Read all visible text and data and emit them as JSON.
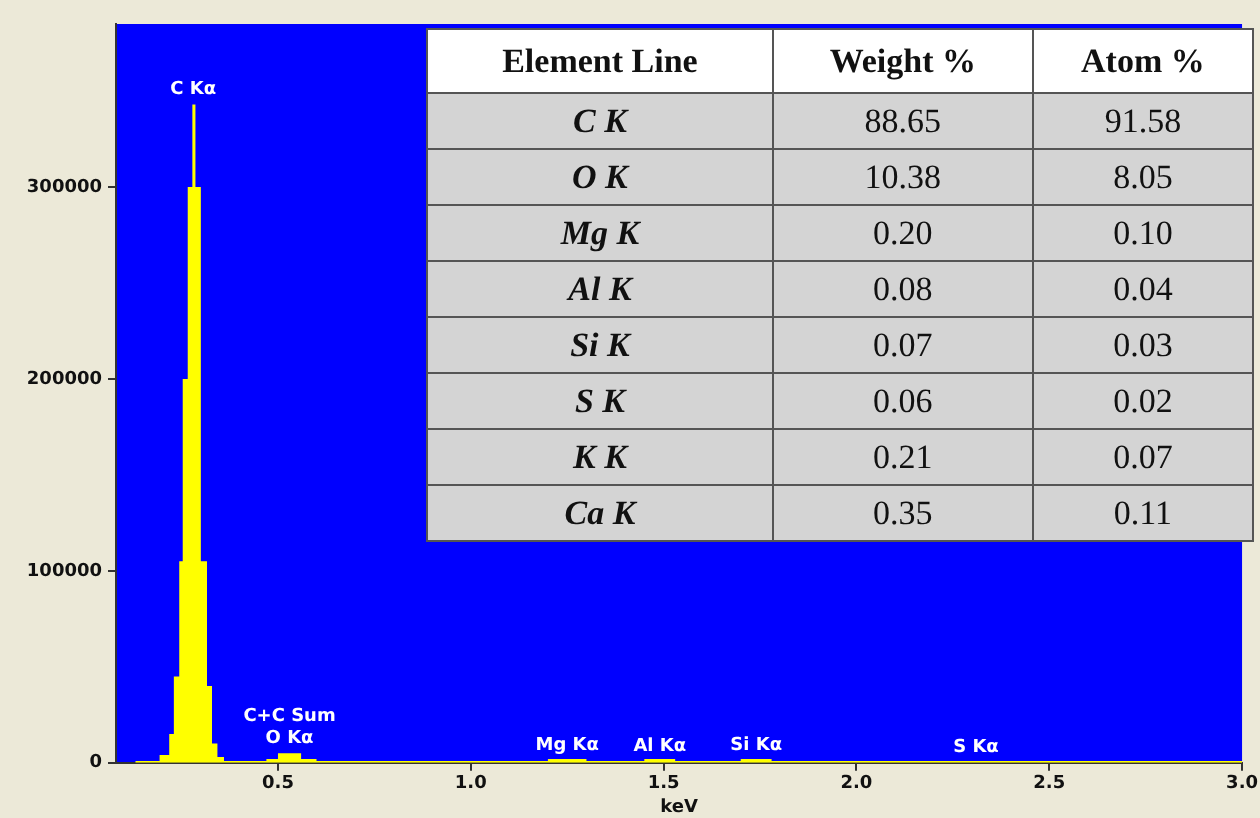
{
  "chart_data": [
    {
      "type": "histogram",
      "xlabel": "keV",
      "bins": [
        0.13,
        0.193,
        0.218,
        0.23,
        0.244,
        0.253,
        0.266,
        0.278,
        0.286,
        0.3,
        0.316,
        0.329,
        0.343,
        0.36,
        0.47,
        0.5,
        0.56,
        0.6,
        1.2,
        1.3,
        1.45,
        1.53,
        1.7,
        1.78,
        3.0
      ],
      "series": [
        {
          "color": "#ffff00",
          "values": [
            1000,
            4000,
            15000,
            45000,
            105000,
            200000,
            300000,
            343000,
            300000,
            105000,
            40000,
            10000,
            3000,
            1000,
            2000,
            5000,
            2000,
            1000,
            2000,
            1000,
            2000,
            1000,
            2000,
            1000
          ]
        }
      ],
      "xlim": [
        0.08,
        3.0
      ],
      "ylim": [
        0,
        385000
      ],
      "xticks": [
        0.5,
        {
          "value": 1,
          "label": "1.0"
        },
        1.5,
        {
          "value": 2,
          "label": "2.0"
        },
        2.5,
        {
          "value": 3,
          "label": "3.0"
        }
      ],
      "yticks": [
        0,
        100000,
        200000,
        300000
      ],
      "grid": false,
      "legend": false,
      "annotations": [
        {
          "text": "C Kα",
          "x": 0.28,
          "y": 343000
        },
        {
          "text": "C+C Sum\nO Kα",
          "x": 0.53,
          "y": 5000
        },
        {
          "text": "Mg Kα",
          "x": 1.25,
          "y": 1500
        },
        {
          "text": "Al Kα",
          "x": 1.49,
          "y": 1000
        },
        {
          "text": "Si Kα",
          "x": 1.74,
          "y": 1500
        },
        {
          "text": "S Kα",
          "x": 2.31,
          "y": 500
        }
      ]
    },
    {
      "type": "other",
      "legend_title": "Element Line",
      "categories": [
        "C K",
        "O K",
        "Mg K",
        "Al K",
        "Si K",
        "S K",
        "K K",
        "Ca K"
      ],
      "data_labels": true,
      "series": [
        {
          "name": "Weight %",
          "values": [
            88.65,
            10.38,
            0.2,
            0.08,
            0.07,
            0.06,
            0.21,
            0.35
          ],
          "value_labels": [
            "88.65",
            "10.38",
            "0.20",
            "0.08",
            "0.07",
            "0.06",
            "0.21",
            "0.35"
          ]
        },
        {
          "name": "Atom %",
          "values": [
            91.58,
            8.05,
            0.1,
            0.04,
            0.03,
            0.02,
            0.07,
            0.11
          ],
          "value_labels": [
            "91.58",
            "8.05",
            "0.10",
            "0.04",
            "0.03",
            "0.02",
            "0.07",
            "0.11"
          ]
        }
      ]
    }
  ]
}
